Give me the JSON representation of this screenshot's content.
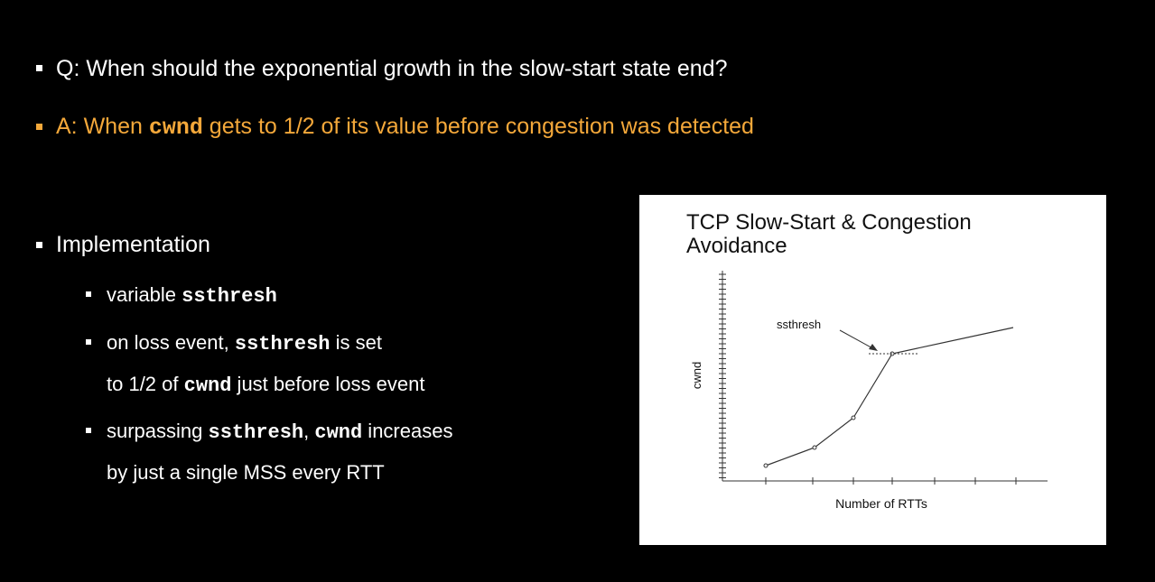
{
  "slide": {
    "question": "Q: When should the exponential growth in the slow-start state end?",
    "answer": [
      "A: When ",
      "cwnd",
      " gets to 1/2 of its value before congestion was detected"
    ],
    "implementation": {
      "heading": "Implementation",
      "items": [
        [
          "variable ",
          "ssthresh"
        ],
        [
          "on loss event, ",
          "ssthresh",
          " is set"
        ],
        [
          "to 1/2 of ",
          "cwnd",
          " just before loss event"
        ],
        [
          "surpassing ",
          "ssthresh",
          ", ",
          "cwnd",
          " increases"
        ],
        [
          "by just a single MSS every RTT"
        ]
      ]
    },
    "figure": {
      "title": [
        "TCP Slow-Start & Congestion",
        "Avoidance"
      ],
      "y_label": "cwnd",
      "x_label": "Number of RTTs",
      "annotation": "ssthresh"
    }
  }
}
